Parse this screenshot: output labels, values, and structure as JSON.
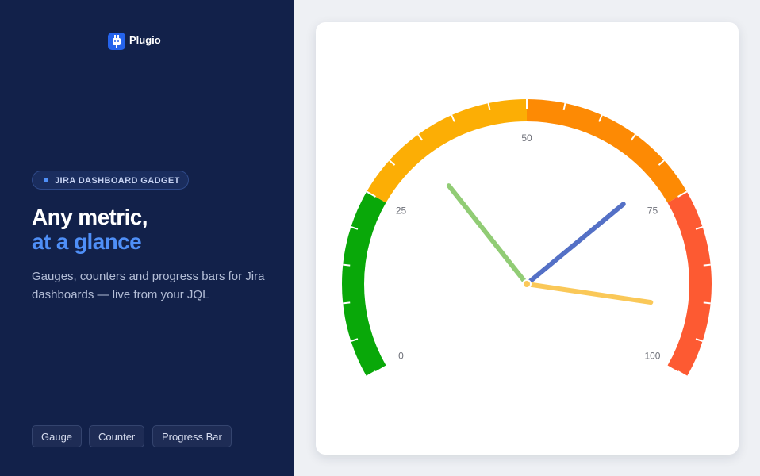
{
  "brand": {
    "name": "Plugio"
  },
  "hero": {
    "badge": "JIRA DASHBOARD GADGET",
    "headline": "Any metric,",
    "headline_accent": "at a glance",
    "description": "Gauges, counters and progress bars for Jira dashboards — live from your JQL"
  },
  "buttons": [
    "Gauge",
    "Counter",
    "Progress Bar"
  ],
  "chart_data": {
    "type": "gauge",
    "ylim": [
      0,
      100
    ],
    "yticks": [
      0,
      25,
      50,
      75,
      100
    ],
    "minor_ticks": [
      5,
      10,
      15,
      20,
      30,
      35,
      40,
      45,
      55,
      60,
      65,
      70,
      80,
      85,
      90,
      95
    ],
    "bands": [
      {
        "from": 0,
        "to": 25,
        "color": "#09a809"
      },
      {
        "from": 25,
        "to": 50,
        "color": "#fcae05"
      },
      {
        "from": 50,
        "to": 75,
        "color": "#fd8a04"
      },
      {
        "from": 75,
        "to": 100,
        "color": "#fd5a32"
      }
    ],
    "series": [
      {
        "color": "#91cc75",
        "values": [
          34
        ]
      },
      {
        "color": "#5470c6",
        "values": [
          71
        ]
      },
      {
        "color": "#fac858",
        "values": [
          91
        ]
      }
    ]
  }
}
